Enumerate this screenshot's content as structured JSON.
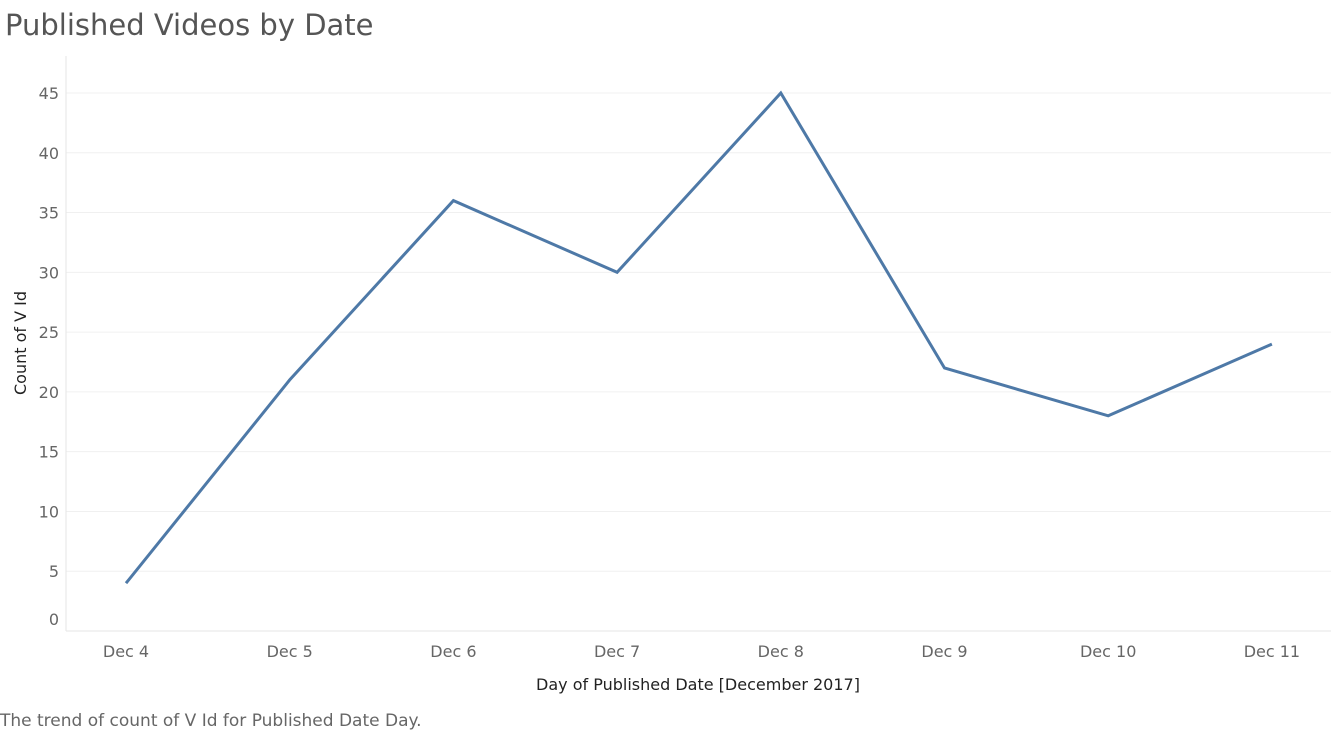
{
  "title": "Published Videos by Date",
  "caption": "The trend of count of V Id for Published Date Day.",
  "chart_data": {
    "type": "line",
    "categories": [
      "Dec 4",
      "Dec 5",
      "Dec 6",
      "Dec 7",
      "Dec 8",
      "Dec 9",
      "Dec 10",
      "Dec 11"
    ],
    "series": [
      {
        "values": [
          4,
          21,
          36,
          30,
          45,
          22,
          18,
          24
        ]
      }
    ],
    "xlabel": "Day of Published Date [December 2017]",
    "ylabel": "Count of V Id",
    "ylim": [
      0,
      45
    ],
    "yticks": [
      0,
      5,
      10,
      15,
      20,
      25,
      30,
      35,
      40,
      45
    ],
    "grid": true,
    "line_color": "#4e79a7",
    "gridline_color": "#f0f0f0"
  }
}
